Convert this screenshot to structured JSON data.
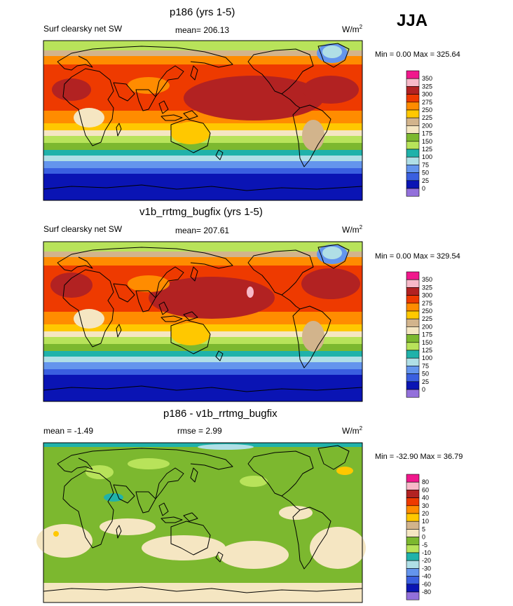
{
  "season": "JJA",
  "panels": [
    {
      "title": "p186 (yrs 1-5)",
      "left_label": "Surf clearsky net SW",
      "center_label": "mean= 206.13",
      "units_base": "W/m",
      "units_sup": "2",
      "minmax": "Min =   0.00 Max = 325.64",
      "colorbar": {
        "labels": [
          "350",
          "325",
          "300",
          "275",
          "250",
          "225",
          "200",
          "175",
          "150",
          "125",
          "100",
          "75",
          "50",
          "25",
          "0"
        ],
        "colors": [
          "#f0188c",
          "#f7b9c8",
          "#b22222",
          "#ee3a00",
          "#ff8c00",
          "#ffc800",
          "#d2b48c",
          "#f5e6c2",
          "#7cb82f",
          "#b8e35a",
          "#20b2aa",
          "#b0dfe6",
          "#6495ed",
          "#3a5fe0",
          "#0a14b4",
          "#9370db"
        ]
      }
    },
    {
      "title": "v1b_rrtmg_bugfix (yrs 1-5)",
      "left_label": "Surf clearsky net SW",
      "center_label": "mean= 207.61",
      "units_base": "W/m",
      "units_sup": "2",
      "minmax": "Min =   0.00 Max = 329.54",
      "colorbar": {
        "labels": [
          "350",
          "325",
          "300",
          "275",
          "250",
          "225",
          "200",
          "175",
          "150",
          "125",
          "100",
          "75",
          "50",
          "25",
          "0"
        ],
        "colors": [
          "#f0188c",
          "#f7b9c8",
          "#b22222",
          "#ee3a00",
          "#ff8c00",
          "#ffc800",
          "#d2b48c",
          "#f5e6c2",
          "#7cb82f",
          "#b8e35a",
          "#20b2aa",
          "#b0dfe6",
          "#6495ed",
          "#3a5fe0",
          "#0a14b4",
          "#9370db"
        ]
      }
    },
    {
      "title": "p186 - v1b_rrtmg_bugfix",
      "left_label": "mean =  -1.49",
      "center_label": "rmse =   2.99",
      "units_base": "W/m",
      "units_sup": "2",
      "minmax": "Min = -32.90 Max =  36.79",
      "colorbar": {
        "labels": [
          "80",
          "60",
          "40",
          "30",
          "20",
          "10",
          "5",
          "0",
          "-5",
          "-10",
          "-20",
          "-30",
          "-40",
          "-60",
          "-80"
        ],
        "colors": [
          "#f0188c",
          "#f7b9c8",
          "#b22222",
          "#ee3a00",
          "#ff8c00",
          "#ffc800",
          "#d2b48c",
          "#f5e6c2",
          "#7cb82f",
          "#b8e35a",
          "#20b2aa",
          "#b0dfe6",
          "#6495ed",
          "#3a5fe0",
          "#0a14b4",
          "#9370db"
        ]
      }
    }
  ]
}
